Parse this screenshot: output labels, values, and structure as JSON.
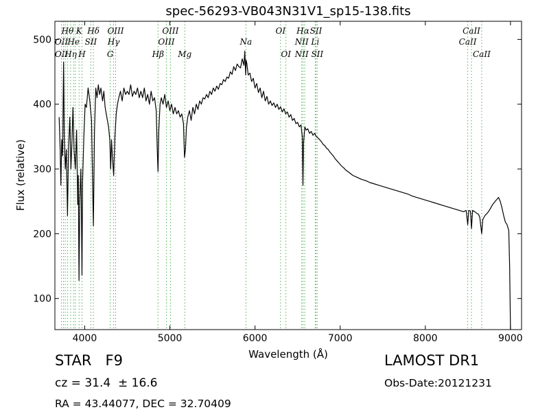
{
  "page": {
    "class_line": "STAR   F9",
    "survey": "LAMOST DR1",
    "cz_line": "cz = 31.4  ± 16.6",
    "obs_date": "Obs-Date:20121231",
    "ra_dec": "RA = 43.44077, DEC = 32.70409"
  },
  "chart_data": {
    "type": "line",
    "title": "spec-56293-VB043N31V1_sp15-138.fits",
    "xlabel": "Wavelength (Å)",
    "ylabel": "Flux (relative)",
    "xlim": [
      3650,
      9130
    ],
    "ylim": [
      52,
      528
    ],
    "xticks": [
      4000,
      5000,
      6000,
      7000,
      8000,
      9000
    ],
    "yticks": [
      100,
      200,
      300,
      400,
      500
    ],
    "grid": false,
    "line_color": "#000000",
    "marker_color": "#4caf50",
    "series": [
      {
        "values": [
          [
            3700,
            380
          ],
          [
            3712,
            330
          ],
          [
            3720,
            275
          ],
          [
            3730,
            345
          ],
          [
            3740,
            320
          ],
          [
            3752,
            465
          ],
          [
            3760,
            350
          ],
          [
            3772,
            300
          ],
          [
            3785,
            330
          ],
          [
            3798,
            228
          ],
          [
            3810,
            330
          ],
          [
            3825,
            380
          ],
          [
            3838,
            300
          ],
          [
            3850,
            340
          ],
          [
            3862,
            395
          ],
          [
            3875,
            330
          ],
          [
            3890,
            300
          ],
          [
            3905,
            360
          ],
          [
            3918,
            245
          ],
          [
            3925,
            290
          ],
          [
            3933,
            128
          ],
          [
            3942,
            250
          ],
          [
            3955,
            300
          ],
          [
            3962,
            228
          ],
          [
            3968,
            136
          ],
          [
            3975,
            280
          ],
          [
            3990,
            350
          ],
          [
            4005,
            400
          ],
          [
            4020,
            395
          ],
          [
            4040,
            425
          ],
          [
            4060,
            405
          ],
          [
            4080,
            375
          ],
          [
            4102,
            212
          ],
          [
            4115,
            360
          ],
          [
            4130,
            425
          ],
          [
            4145,
            410
          ],
          [
            4160,
            430
          ],
          [
            4175,
            415
          ],
          [
            4190,
            425
          ],
          [
            4210,
            405
          ],
          [
            4225,
            420
          ],
          [
            4240,
            395
          ],
          [
            4260,
            380
          ],
          [
            4280,
            365
          ],
          [
            4295,
            345
          ],
          [
            4305,
            300
          ],
          [
            4315,
            345
          ],
          [
            4325,
            320
          ],
          [
            4340,
            290
          ],
          [
            4355,
            350
          ],
          [
            4370,
            385
          ],
          [
            4385,
            400
          ],
          [
            4400,
            410
          ],
          [
            4420,
            420
          ],
          [
            4440,
            405
          ],
          [
            4460,
            425
          ],
          [
            4480,
            415
          ],
          [
            4500,
            420
          ],
          [
            4520,
            415
          ],
          [
            4540,
            430
          ],
          [
            4560,
            412
          ],
          [
            4580,
            420
          ],
          [
            4600,
            415
          ],
          [
            4620,
            425
          ],
          [
            4640,
            410
          ],
          [
            4660,
            420
          ],
          [
            4680,
            410
          ],
          [
            4700,
            425
          ],
          [
            4720,
            405
          ],
          [
            4740,
            415
          ],
          [
            4760,
            400
          ],
          [
            4780,
            420
          ],
          [
            4800,
            405
          ],
          [
            4820,
            410
          ],
          [
            4840,
            390
          ],
          [
            4852,
            330
          ],
          [
            4861,
            296
          ],
          [
            4870,
            360
          ],
          [
            4885,
            400
          ],
          [
            4900,
            410
          ],
          [
            4920,
            400
          ],
          [
            4940,
            415
          ],
          [
            4960,
            395
          ],
          [
            4980,
            405
          ],
          [
            5000,
            390
          ],
          [
            5020,
            400
          ],
          [
            5040,
            385
          ],
          [
            5060,
            395
          ],
          [
            5080,
            385
          ],
          [
            5100,
            390
          ],
          [
            5120,
            380
          ],
          [
            5140,
            385
          ],
          [
            5160,
            370
          ],
          [
            5172,
            318
          ],
          [
            5183,
            330
          ],
          [
            5195,
            365
          ],
          [
            5210,
            380
          ],
          [
            5230,
            390
          ],
          [
            5250,
            375
          ],
          [
            5270,
            395
          ],
          [
            5290,
            385
          ],
          [
            5310,
            400
          ],
          [
            5330,
            392
          ],
          [
            5350,
            405
          ],
          [
            5370,
            400
          ],
          [
            5390,
            410
          ],
          [
            5410,
            408
          ],
          [
            5430,
            415
          ],
          [
            5450,
            410
          ],
          [
            5470,
            420
          ],
          [
            5490,
            415
          ],
          [
            5510,
            425
          ],
          [
            5530,
            420
          ],
          [
            5550,
            428
          ],
          [
            5570,
            423
          ],
          [
            5590,
            432
          ],
          [
            5610,
            430
          ],
          [
            5630,
            438
          ],
          [
            5650,
            435
          ],
          [
            5670,
            442
          ],
          [
            5690,
            440
          ],
          [
            5710,
            450
          ],
          [
            5730,
            446
          ],
          [
            5750,
            458
          ],
          [
            5770,
            452
          ],
          [
            5790,
            462
          ],
          [
            5810,
            458
          ],
          [
            5830,
            456
          ],
          [
            5850,
            470
          ],
          [
            5870,
            460
          ],
          [
            5880,
            482
          ],
          [
            5890,
            445
          ],
          [
            5896,
            468
          ],
          [
            5905,
            462
          ],
          [
            5920,
            445
          ],
          [
            5940,
            448
          ],
          [
            5960,
            435
          ],
          [
            5980,
            440
          ],
          [
            6000,
            425
          ],
          [
            6020,
            432
          ],
          [
            6040,
            418
          ],
          [
            6060,
            425
          ],
          [
            6080,
            410
          ],
          [
            6100,
            420
          ],
          [
            6120,
            405
          ],
          [
            6140,
            412
          ],
          [
            6160,
            400
          ],
          [
            6180,
            405
          ],
          [
            6200,
            398
          ],
          [
            6220,
            402
          ],
          [
            6240,
            395
          ],
          [
            6260,
            400
          ],
          [
            6280,
            392
          ],
          [
            6300,
            396
          ],
          [
            6320,
            388
          ],
          [
            6340,
            393
          ],
          [
            6360,
            385
          ],
          [
            6380,
            388
          ],
          [
            6400,
            380
          ],
          [
            6420,
            384
          ],
          [
            6440,
            375
          ],
          [
            6460,
            378
          ],
          [
            6480,
            370
          ],
          [
            6500,
            372
          ],
          [
            6520,
            365
          ],
          [
            6540,
            368
          ],
          [
            6555,
            350
          ],
          [
            6563,
            275
          ],
          [
            6570,
            340
          ],
          [
            6585,
            365
          ],
          [
            6600,
            360
          ],
          [
            6620,
            362
          ],
          [
            6640,
            355
          ],
          [
            6660,
            358
          ],
          [
            6680,
            352
          ],
          [
            6700,
            355
          ],
          [
            6720,
            350
          ],
          [
            6740,
            348
          ],
          [
            6760,
            345
          ],
          [
            6780,
            342
          ],
          [
            6800,
            338
          ],
          [
            6820,
            336
          ],
          [
            6840,
            332
          ],
          [
            6860,
            330
          ],
          [
            6880,
            326
          ],
          [
            6900,
            323
          ],
          [
            6920,
            320
          ],
          [
            6940,
            316
          ],
          [
            6960,
            313
          ],
          [
            6980,
            310
          ],
          [
            7000,
            307
          ],
          [
            7020,
            304
          ],
          [
            7040,
            302
          ],
          [
            7060,
            299
          ],
          [
            7080,
            297
          ],
          [
            7100,
            295
          ],
          [
            7150,
            290
          ],
          [
            7200,
            287
          ],
          [
            7250,
            284
          ],
          [
            7300,
            282
          ],
          [
            7350,
            279
          ],
          [
            7400,
            277
          ],
          [
            7450,
            275
          ],
          [
            7500,
            273
          ],
          [
            7550,
            271
          ],
          [
            7600,
            269
          ],
          [
            7650,
            267
          ],
          [
            7700,
            265
          ],
          [
            7750,
            263
          ],
          [
            7800,
            261
          ],
          [
            7850,
            258
          ],
          [
            7900,
            256
          ],
          [
            7950,
            254
          ],
          [
            8000,
            252
          ],
          [
            8050,
            250
          ],
          [
            8100,
            248
          ],
          [
            8150,
            246
          ],
          [
            8200,
            244
          ],
          [
            8250,
            242
          ],
          [
            8300,
            240
          ],
          [
            8350,
            238
          ],
          [
            8400,
            236
          ],
          [
            8450,
            234
          ],
          [
            8480,
            236
          ],
          [
            8498,
            214
          ],
          [
            8510,
            236
          ],
          [
            8530,
            235
          ],
          [
            8542,
            208
          ],
          [
            8555,
            236
          ],
          [
            8580,
            234
          ],
          [
            8600,
            232
          ],
          [
            8625,
            230
          ],
          [
            8640,
            225
          ],
          [
            8662,
            200
          ],
          [
            8675,
            222
          ],
          [
            8700,
            228
          ],
          [
            8730,
            232
          ],
          [
            8760,
            238
          ],
          [
            8790,
            245
          ],
          [
            8820,
            250
          ],
          [
            8840,
            253
          ],
          [
            8860,
            256
          ],
          [
            8880,
            250
          ],
          [
            8900,
            240
          ],
          [
            8920,
            228
          ],
          [
            8940,
            218
          ],
          [
            8960,
            214
          ],
          [
            8980,
            205
          ],
          [
            8990,
            150
          ],
          [
            9000,
            52
          ]
        ]
      }
    ],
    "lines": [
      {
        "x": 3727,
        "labels": [
          {
            "text": "OII",
            "row": 2
          },
          {
            "text": "OII",
            "row": 3
          }
        ]
      },
      {
        "x": 3750,
        "labels": []
      },
      {
        "x": 3771,
        "labels": []
      },
      {
        "x": 3798,
        "labels": [
          {
            "text": "Hθ",
            "row": 1
          }
        ]
      },
      {
        "x": 3835,
        "labels": [
          {
            "text": "Hη",
            "row": 3
          }
        ]
      },
      {
        "x": 3869,
        "labels": [
          {
            "text": "He",
            "row": 2
          }
        ]
      },
      {
        "x": 3889,
        "labels": []
      },
      {
        "x": 3934,
        "labels": [
          {
            "text": "K",
            "row": 1
          }
        ]
      },
      {
        "x": 3968,
        "labels": [
          {
            "text": "H",
            "row": 3
          }
        ]
      },
      {
        "x": 4072,
        "labels": [
          {
            "text": "SII",
            "row": 2
          }
        ]
      },
      {
        "x": 4102,
        "labels": [
          {
            "text": "Hδ",
            "row": 1
          }
        ]
      },
      {
        "x": 4300,
        "labels": [
          {
            "text": "G",
            "row": 3
          }
        ]
      },
      {
        "x": 4340,
        "labels": [
          {
            "text": "Hγ",
            "row": 2
          }
        ]
      },
      {
        "x": 4363,
        "labels": [
          {
            "text": "OIII",
            "row": 1
          }
        ]
      },
      {
        "x": 4861,
        "labels": [
          {
            "text": "Hβ",
            "row": 3
          }
        ]
      },
      {
        "x": 4959,
        "labels": [
          {
            "text": "OIII",
            "row": 2
          }
        ]
      },
      {
        "x": 5007,
        "labels": [
          {
            "text": "OIII",
            "row": 1
          }
        ]
      },
      {
        "x": 5175,
        "labels": [
          {
            "text": "Mg",
            "row": 3
          }
        ]
      },
      {
        "x": 5893,
        "labels": [
          {
            "text": "Na",
            "row": 2
          }
        ]
      },
      {
        "x": 6300,
        "labels": [
          {
            "text": "OI",
            "row": 1
          }
        ]
      },
      {
        "x": 6363,
        "labels": [
          {
            "text": "OI",
            "row": 3
          }
        ]
      },
      {
        "x": 6548,
        "labels": [
          {
            "text": "NII",
            "row": 2
          },
          {
            "text": "NII",
            "row": 3
          }
        ]
      },
      {
        "x": 6563,
        "labels": [
          {
            "text": "Hα",
            "row": 1
          }
        ]
      },
      {
        "x": 6583,
        "labels": []
      },
      {
        "x": 6707,
        "labels": [
          {
            "text": "Li",
            "row": 2
          }
        ]
      },
      {
        "x": 6716,
        "labels": [
          {
            "text": "SII",
            "row": 1
          }
        ]
      },
      {
        "x": 6731,
        "labels": [
          {
            "text": "SII",
            "row": 3
          }
        ]
      },
      {
        "x": 8498,
        "labels": [
          {
            "text": "CaII",
            "row": 2
          }
        ]
      },
      {
        "x": 8542,
        "labels": [
          {
            "text": "CaII",
            "row": 1
          }
        ]
      },
      {
        "x": 8662,
        "labels": [
          {
            "text": "CaII",
            "row": 3
          }
        ]
      }
    ]
  }
}
